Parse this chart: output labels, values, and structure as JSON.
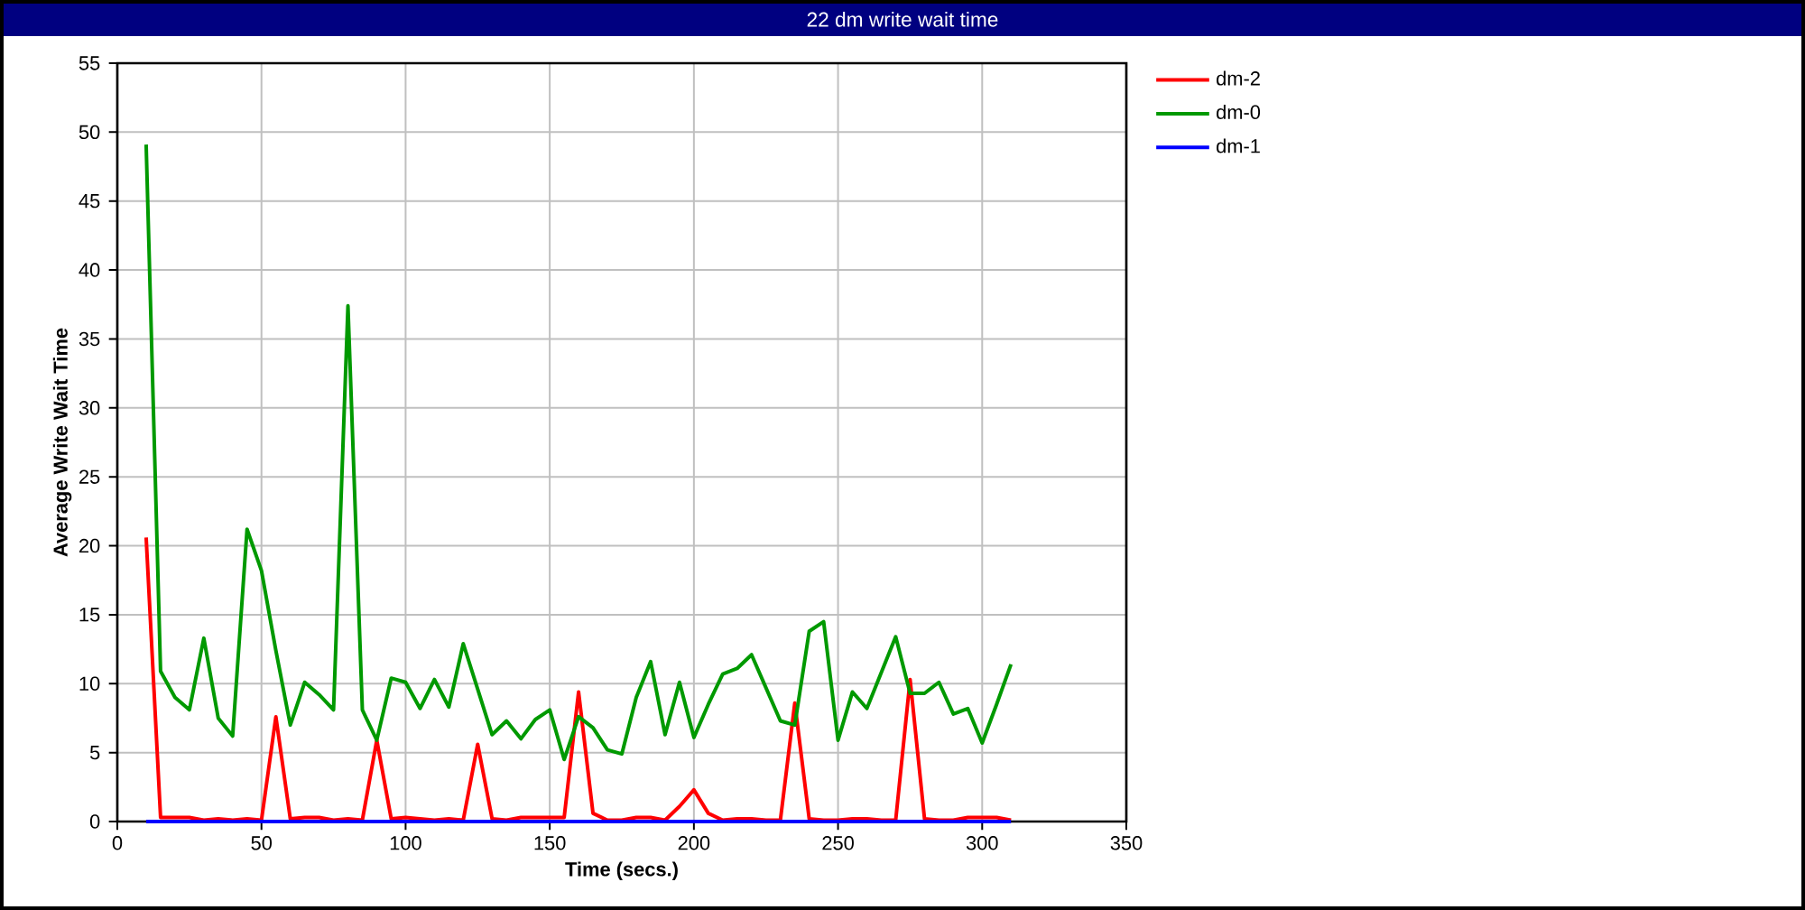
{
  "chart_data": {
    "type": "line",
    "title": "22 dm write wait time",
    "xlabel": "Time (secs.)",
    "ylabel": "Average Write Wait Time",
    "x": [
      10,
      15,
      20,
      25,
      30,
      35,
      40,
      45,
      50,
      55,
      60,
      65,
      70,
      75,
      80,
      85,
      90,
      95,
      100,
      105,
      110,
      115,
      120,
      125,
      130,
      135,
      140,
      145,
      150,
      155,
      160,
      165,
      170,
      175,
      180,
      185,
      190,
      195,
      200,
      205,
      210,
      215,
      220,
      225,
      230,
      235,
      240,
      245,
      250,
      255,
      260,
      265,
      270,
      275,
      280,
      285,
      290,
      295,
      300,
      305,
      310
    ],
    "series": [
      {
        "name": "dm-2",
        "color": "#ff0000",
        "values": [
          20.6,
          0.3,
          0.3,
          0.3,
          0.1,
          0.2,
          0.1,
          0.2,
          0.1,
          7.6,
          0.2,
          0.3,
          0.3,
          0.1,
          0.2,
          0.1,
          5.9,
          0.2,
          0.3,
          0.2,
          0.1,
          0.2,
          0.1,
          5.6,
          0.2,
          0.1,
          0.3,
          0.3,
          0.3,
          0.3,
          9.4,
          0.6,
          0.1,
          0.1,
          0.3,
          0.3,
          0.1,
          1.1,
          2.3,
          0.6,
          0.1,
          0.2,
          0.2,
          0.1,
          0.1,
          8.6,
          0.2,
          0.1,
          0.1,
          0.2,
          0.2,
          0.1,
          0.1,
          10.3,
          0.2,
          0.1,
          0.1,
          0.3,
          0.3,
          0.3,
          0.1
        ]
      },
      {
        "name": "dm-0",
        "color": "#009900",
        "values": [
          49.1,
          10.9,
          9.0,
          8.1,
          13.3,
          7.5,
          6.2,
          21.2,
          18.2,
          12.4,
          7.0,
          10.1,
          9.2,
          8.1,
          37.4,
          8.1,
          5.9,
          10.4,
          10.1,
          8.2,
          10.3,
          8.3,
          12.9,
          9.6,
          6.3,
          7.3,
          6.0,
          7.4,
          8.1,
          4.5,
          7.6,
          6.8,
          5.2,
          4.9,
          9.0,
          11.6,
          6.3,
          10.1,
          6.1,
          8.5,
          10.7,
          11.1,
          12.1,
          9.7,
          7.3,
          7.0,
          13.8,
          14.5,
          5.9,
          9.4,
          8.2,
          10.8,
          13.4,
          9.3,
          9.3,
          10.1,
          7.8,
          8.2,
          5.7,
          8.5,
          11.4
        ]
      },
      {
        "name": "dm-1",
        "color": "#0000ff",
        "values": [
          0,
          0,
          0,
          0,
          0,
          0,
          0,
          0,
          0,
          0,
          0,
          0,
          0,
          0,
          0,
          0,
          0,
          0,
          0,
          0,
          0,
          0,
          0,
          0,
          0,
          0,
          0,
          0,
          0,
          0,
          0,
          0,
          0,
          0,
          0,
          0,
          0,
          0,
          0,
          0,
          0,
          0,
          0,
          0,
          0,
          0,
          0,
          0,
          0,
          0,
          0,
          0,
          0,
          0,
          0,
          0,
          0,
          0,
          0,
          0,
          0
        ]
      }
    ],
    "xlim": [
      0,
      350
    ],
    "ylim": [
      0,
      55
    ],
    "xticks": [
      0,
      50,
      100,
      150,
      200,
      250,
      300,
      350
    ],
    "yticks": [
      0,
      5,
      10,
      15,
      20,
      25,
      30,
      35,
      40,
      45,
      50,
      55
    ],
    "grid": true,
    "legend": "top right",
    "marker": "none",
    "line_style": "solid"
  }
}
